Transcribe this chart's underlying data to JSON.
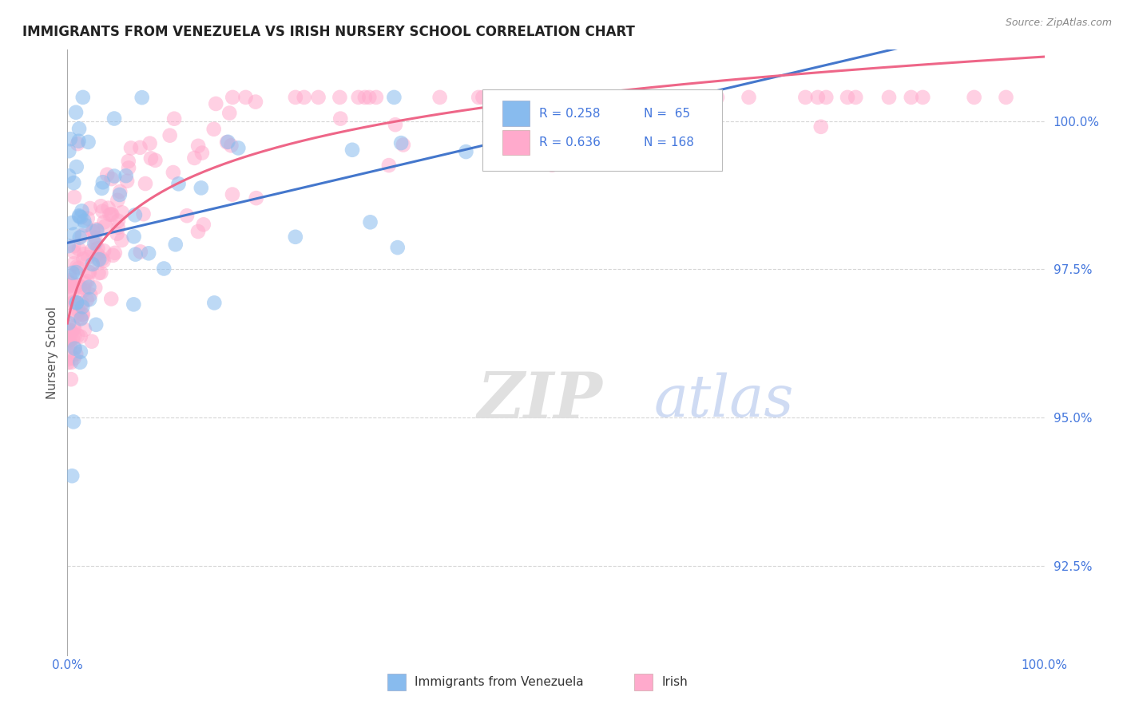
{
  "title": "IMMIGRANTS FROM VENEZUELA VS IRISH NURSERY SCHOOL CORRELATION CHART",
  "source_text": "Source: ZipAtlas.com",
  "ylabel": "Nursery School",
  "xlim": [
    0.0,
    100.0
  ],
  "ylim": [
    91.0,
    101.2
  ],
  "yticks": [
    92.5,
    95.0,
    97.5,
    100.0
  ],
  "ytick_labels": [
    "92.5%",
    "95.0%",
    "97.5%",
    "100.0%"
  ],
  "legend_r1": "R = 0.258",
  "legend_n1": "N =  65",
  "legend_r2": "R = 0.636",
  "legend_n2": "N = 168",
  "legend_label1": "Immigrants from Venezuela",
  "legend_label2": "Irish",
  "watermark_zip": "ZIP",
  "watermark_atlas": "atlas",
  "blue_color": "#88BBEE",
  "pink_color": "#FFAACC",
  "blue_line_color": "#4477CC",
  "pink_line_color": "#EE6688",
  "title_color": "#222222",
  "axis_label_color": "#4477DD",
  "background_color": "#FFFFFF"
}
